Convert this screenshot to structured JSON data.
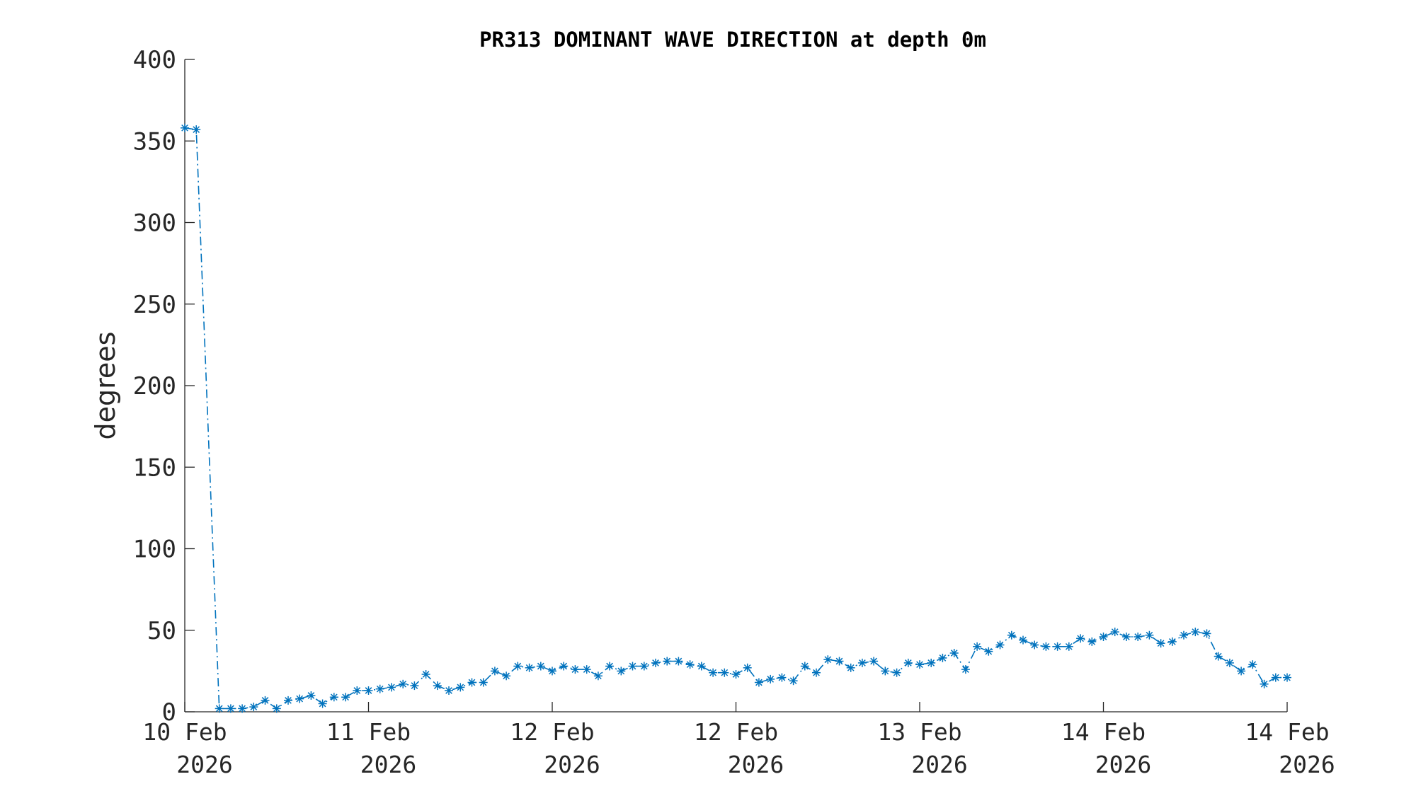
{
  "chart_data": {
    "type": "line",
    "title": "PR313 DOMINANT WAVE DIRECTION at depth 0m",
    "xlabel": "",
    "ylabel": "degrees",
    "ylim": [
      0,
      400
    ],
    "yticks": [
      "0",
      "50",
      "100",
      "150",
      "200",
      "250",
      "300",
      "350",
      "400"
    ],
    "xlim": [
      "2026-02-10T00:00",
      "2026-02-14T00:00"
    ],
    "xticks": [
      {
        "line1": "10 Feb",
        "line2": "2026"
      },
      {
        "line1": "11 Feb",
        "line2": "2026"
      },
      {
        "line1": "12 Feb",
        "line2": "2026"
      },
      {
        "line1": "12 Feb",
        "line2": "2026"
      },
      {
        "line1": "13 Feb",
        "line2": "2026"
      },
      {
        "line1": "14 Feb",
        "line2": "2026"
      },
      {
        "line1": "14 Feb",
        "line2": "2026"
      }
    ],
    "grid": false,
    "marker": "asterisk",
    "line_style": "dash-dot",
    "color": "#0072BD",
    "series": [
      {
        "x": [
          "2026-02-10T00:00",
          "2026-02-10T01:00",
          "2026-02-10T03:00",
          "2026-02-10T04:00",
          "2026-02-10T05:00",
          "2026-02-10T06:00",
          "2026-02-10T07:00",
          "2026-02-10T08:00",
          "2026-02-10T09:00",
          "2026-02-10T10:00",
          "2026-02-10T11:00",
          "2026-02-10T12:00",
          "2026-02-10T13:00",
          "2026-02-10T14:00",
          "2026-02-10T15:00",
          "2026-02-10T16:00",
          "2026-02-10T17:00",
          "2026-02-10T18:00",
          "2026-02-10T19:00",
          "2026-02-10T20:00",
          "2026-02-10T21:00",
          "2026-02-10T22:00",
          "2026-02-10T23:00",
          "2026-02-11T00:00",
          "2026-02-11T01:00",
          "2026-02-11T02:00",
          "2026-02-11T03:00",
          "2026-02-11T04:00",
          "2026-02-11T05:00",
          "2026-02-11T06:00",
          "2026-02-11T07:00",
          "2026-02-11T08:00",
          "2026-02-11T09:00",
          "2026-02-11T10:00",
          "2026-02-11T11:00",
          "2026-02-11T12:00",
          "2026-02-11T13:00",
          "2026-02-11T14:00",
          "2026-02-11T15:00",
          "2026-02-11T16:00",
          "2026-02-11T17:00",
          "2026-02-11T18:00",
          "2026-02-11T19:00",
          "2026-02-11T20:00",
          "2026-02-11T21:00",
          "2026-02-11T22:00",
          "2026-02-11T23:00",
          "2026-02-12T00:00",
          "2026-02-12T01:00",
          "2026-02-12T02:00",
          "2026-02-12T03:00",
          "2026-02-12T04:00",
          "2026-02-12T05:00",
          "2026-02-12T06:00",
          "2026-02-12T07:00",
          "2026-02-12T08:00",
          "2026-02-12T09:00",
          "2026-02-12T10:00",
          "2026-02-12T11:00",
          "2026-02-12T12:00",
          "2026-02-12T13:00",
          "2026-02-12T14:00",
          "2026-02-12T15:00",
          "2026-02-12T16:00",
          "2026-02-12T17:00",
          "2026-02-12T18:00",
          "2026-02-12T19:00",
          "2026-02-12T20:00",
          "2026-02-12T21:00",
          "2026-02-12T22:00",
          "2026-02-12T23:00",
          "2026-02-13T00:00",
          "2026-02-13T01:00",
          "2026-02-13T02:00",
          "2026-02-13T03:00",
          "2026-02-13T04:00",
          "2026-02-13T05:00",
          "2026-02-13T06:00",
          "2026-02-13T07:00",
          "2026-02-13T08:00",
          "2026-02-13T09:00",
          "2026-02-13T10:00",
          "2026-02-13T11:00",
          "2026-02-13T12:00",
          "2026-02-13T13:00",
          "2026-02-13T14:00",
          "2026-02-13T15:00",
          "2026-02-13T16:00",
          "2026-02-13T17:00",
          "2026-02-13T18:00",
          "2026-02-13T19:00",
          "2026-02-13T20:00",
          "2026-02-13T21:00",
          "2026-02-13T22:00",
          "2026-02-13T23:00",
          "2026-02-14T00:00"
        ],
        "y": [
          358,
          357,
          2,
          2,
          2,
          3,
          7,
          2,
          7,
          8,
          10,
          5,
          9,
          9,
          13,
          13,
          14,
          15,
          17,
          16,
          23,
          16,
          13,
          15,
          18,
          18,
          25,
          22,
          28,
          27,
          28,
          25,
          28,
          26,
          26,
          22,
          28,
          25,
          28,
          28,
          30,
          31,
          31,
          29,
          28,
          24,
          24,
          23,
          27,
          18,
          20,
          21,
          19,
          28,
          24,
          32,
          31,
          27,
          30,
          31,
          25,
          24,
          30,
          29,
          30,
          33,
          36,
          26,
          40,
          37,
          41,
          47,
          44,
          41,
          40,
          40,
          40,
          45,
          43,
          46,
          49,
          46,
          46,
          47,
          42,
          43,
          47,
          49,
          48,
          34,
          30,
          25,
          29,
          17,
          21,
          21
        ]
      }
    ]
  }
}
